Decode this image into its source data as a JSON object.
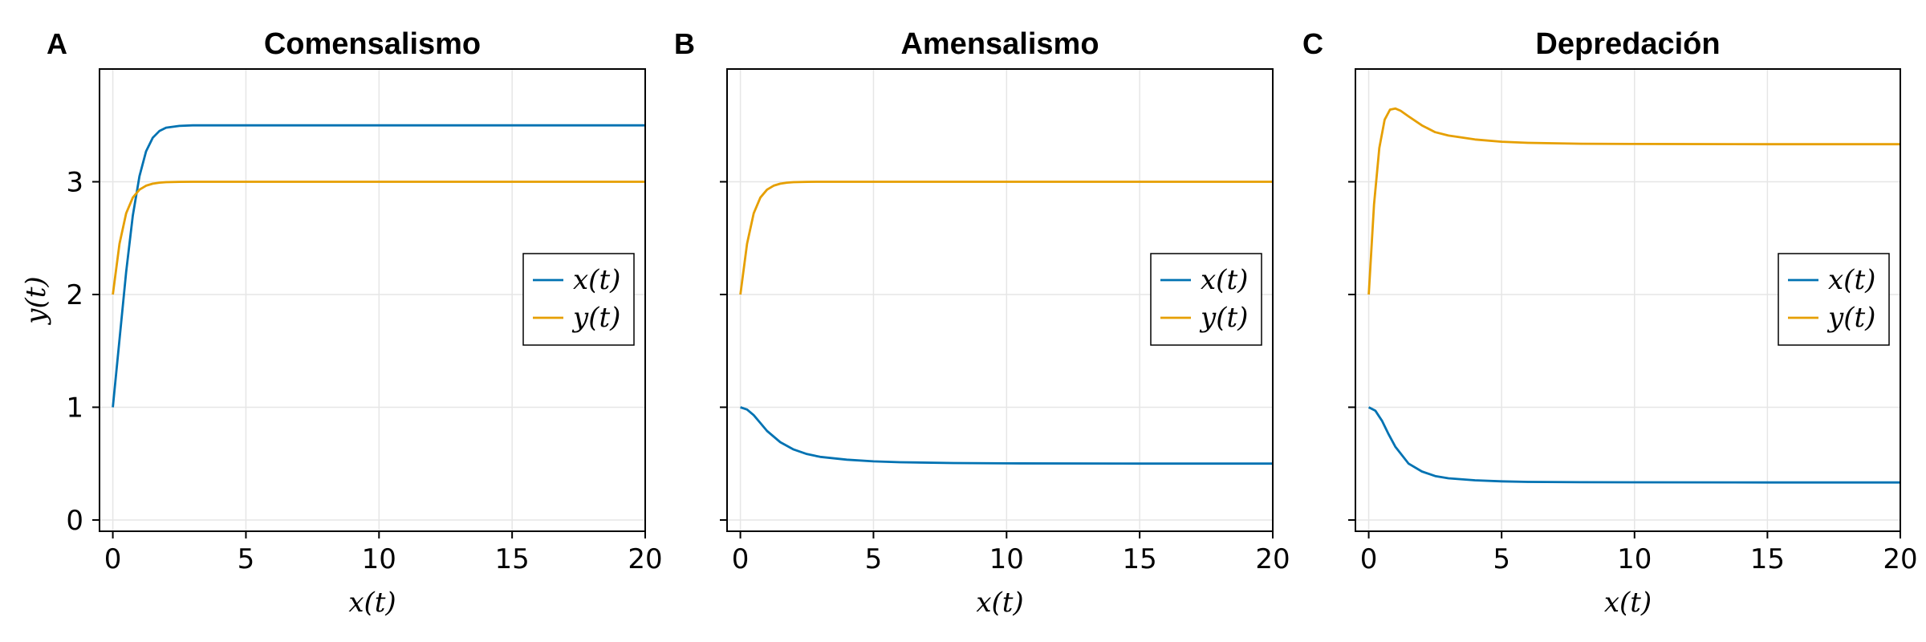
{
  "chart_data": [
    {
      "panel": "A",
      "type": "line",
      "title": "Comensalismo",
      "xlabel": "x(t)",
      "ylabel": "y(t)",
      "xlim": [
        -0.5,
        20
      ],
      "ylim": [
        -0.1,
        4.0
      ],
      "xticks": [
        0,
        5,
        10,
        15,
        20
      ],
      "yticks": [
        0,
        1,
        2,
        3
      ],
      "grid": true,
      "legend_position": "right",
      "series": [
        {
          "name": "x(t)",
          "color": "#0072B2",
          "x": [
            0,
            0.25,
            0.5,
            0.75,
            1,
            1.25,
            1.5,
            1.75,
            2,
            2.5,
            3,
            4,
            6,
            10,
            20
          ],
          "y": [
            1.0,
            1.6,
            2.2,
            2.7,
            3.05,
            3.27,
            3.39,
            3.45,
            3.48,
            3.495,
            3.5,
            3.5,
            3.5,
            3.5,
            3.5
          ]
        },
        {
          "name": "y(t)",
          "color": "#E69F00",
          "x": [
            0,
            0.25,
            0.5,
            0.75,
            1,
            1.25,
            1.5,
            1.75,
            2,
            2.5,
            3,
            4,
            20
          ],
          "y": [
            2.0,
            2.45,
            2.72,
            2.86,
            2.93,
            2.965,
            2.983,
            2.992,
            2.996,
            2.999,
            3.0,
            3.0,
            3.0
          ]
        }
      ]
    },
    {
      "panel": "B",
      "type": "line",
      "title": "Amensalismo",
      "xlabel": "x(t)",
      "ylabel": "",
      "xlim": [
        -0.5,
        20
      ],
      "ylim": [
        -0.1,
        4.0
      ],
      "xticks": [
        0,
        5,
        10,
        15,
        20
      ],
      "yticks": [
        0,
        1,
        2,
        3
      ],
      "grid": true,
      "legend_position": "right",
      "series": [
        {
          "name": "x(t)",
          "color": "#0072B2",
          "x": [
            0,
            0.25,
            0.5,
            0.75,
            1,
            1.5,
            2,
            2.5,
            3,
            4,
            5,
            6,
            8,
            10,
            15,
            20
          ],
          "y": [
            1.0,
            0.98,
            0.93,
            0.86,
            0.79,
            0.69,
            0.625,
            0.585,
            0.56,
            0.535,
            0.52,
            0.512,
            0.505,
            0.502,
            0.5,
            0.5
          ]
        },
        {
          "name": "y(t)",
          "color": "#E69F00",
          "x": [
            0,
            0.25,
            0.5,
            0.75,
            1,
            1.25,
            1.5,
            1.75,
            2,
            2.5,
            3,
            4,
            20
          ],
          "y": [
            2.0,
            2.45,
            2.72,
            2.86,
            2.93,
            2.965,
            2.983,
            2.992,
            2.996,
            2.999,
            3.0,
            3.0,
            3.0
          ]
        }
      ]
    },
    {
      "panel": "C",
      "type": "line",
      "title": "Depredación",
      "xlabel": "x(t)",
      "ylabel": "",
      "xlim": [
        -0.5,
        20
      ],
      "ylim": [
        -0.1,
        4.0
      ],
      "xticks": [
        0,
        5,
        10,
        15,
        20
      ],
      "yticks": [
        0,
        1,
        2,
        3
      ],
      "grid": true,
      "legend_position": "right",
      "series": [
        {
          "name": "x(t)",
          "color": "#0072B2",
          "x": [
            0,
            0.25,
            0.5,
            0.75,
            1,
            1.5,
            2,
            2.5,
            3,
            4,
            5,
            6,
            8,
            10,
            15,
            20
          ],
          "y": [
            1.0,
            0.97,
            0.88,
            0.76,
            0.65,
            0.5,
            0.43,
            0.39,
            0.37,
            0.352,
            0.343,
            0.338,
            0.335,
            0.334,
            0.333,
            0.333
          ]
        },
        {
          "name": "y(t)",
          "color": "#E69F00",
          "x": [
            0,
            0.2,
            0.4,
            0.6,
            0.8,
            1,
            1.2,
            1.5,
            2,
            2.5,
            3,
            4,
            5,
            6,
            8,
            10,
            15,
            20
          ],
          "y": [
            2.0,
            2.8,
            3.3,
            3.55,
            3.64,
            3.65,
            3.63,
            3.58,
            3.5,
            3.44,
            3.41,
            3.375,
            3.355,
            3.345,
            3.337,
            3.335,
            3.333,
            3.333
          ]
        }
      ]
    }
  ]
}
